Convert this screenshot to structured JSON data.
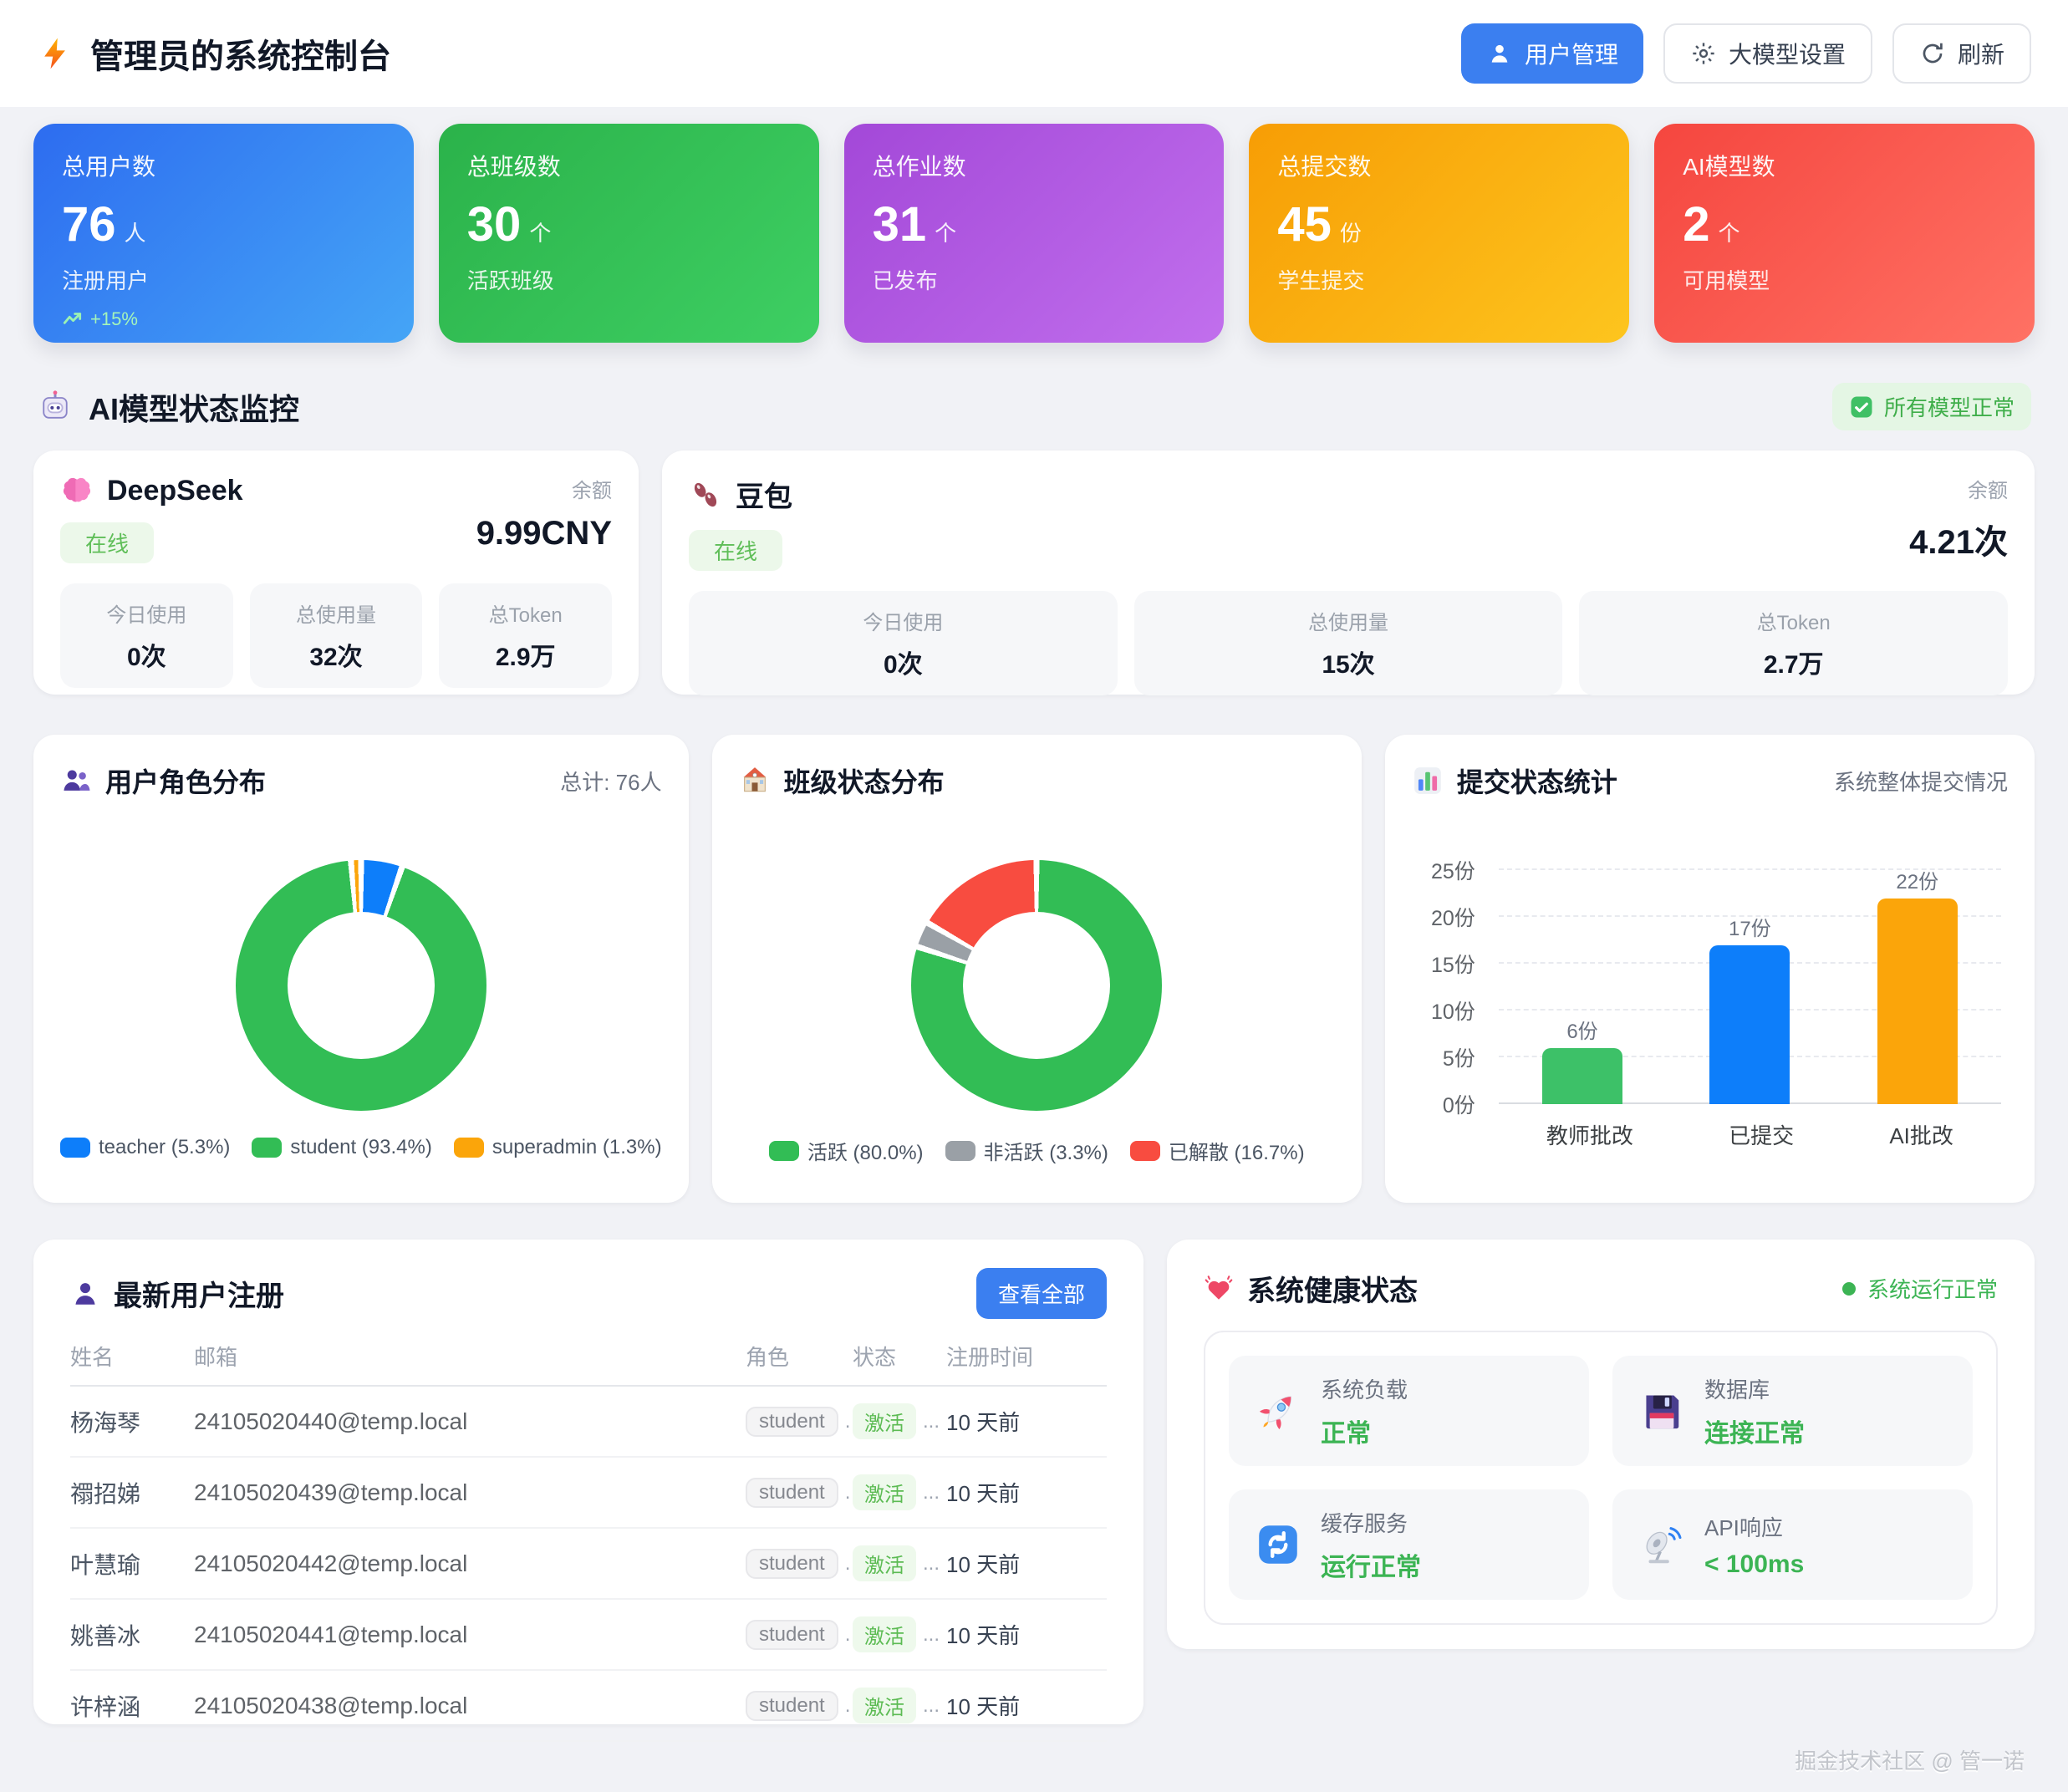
{
  "colors": {
    "accent_blue": "#3b7ff0",
    "chart_blue": "#0d7efa",
    "chart_green": "#32bd55",
    "chart_orange": "#fba50a",
    "chart_gray": "#9aa0a6",
    "chart_red": "#f84c40",
    "status_green": "#3cb454",
    "page_bg": "#f1f2f6"
  },
  "header": {
    "title": "管理员的系统控制台",
    "user_mgmt": "用户管理",
    "model_settings": "大模型设置",
    "refresh": "刷新"
  },
  "stats": [
    {
      "label": "总用户数",
      "value": "76",
      "unit": "人",
      "sub": "注册用户",
      "trend": "+15%"
    },
    {
      "label": "总班级数",
      "value": "30",
      "unit": "个",
      "sub": "活跃班级"
    },
    {
      "label": "总作业数",
      "value": "31",
      "unit": "个",
      "sub": "已发布"
    },
    {
      "label": "总提交数",
      "value": "45",
      "unit": "份",
      "sub": "学生提交"
    },
    {
      "label": "AI模型数",
      "value": "2",
      "unit": "个",
      "sub": "可用模型"
    }
  ],
  "ai_section": {
    "title": "AI模型状态监控",
    "badge": "所有模型正常"
  },
  "models": [
    {
      "name": "DeepSeek",
      "status": "在线",
      "balance_label": "余额",
      "balance": "9.99CNY",
      "stats": [
        {
          "label": "今日使用",
          "value": "0次"
        },
        {
          "label": "总使用量",
          "value": "32次"
        },
        {
          "label": "总Token",
          "value": "2.9万"
        }
      ]
    },
    {
      "name": "豆包",
      "status": "在线",
      "balance_label": "余额",
      "balance": "4.21次",
      "stats": [
        {
          "label": "今日使用",
          "value": "0次"
        },
        {
          "label": "总使用量",
          "value": "15次"
        },
        {
          "label": "总Token",
          "value": "2.7万"
        }
      ]
    }
  ],
  "chart_data": [
    {
      "type": "pie",
      "title": "用户角色分布",
      "total_label": "总计: 76人",
      "labels": [
        "teacher",
        "student",
        "superadmin"
      ],
      "values": [
        5.3,
        93.4,
        1.3
      ],
      "colors": [
        "#0d7efa",
        "#32bd55",
        "#fba50a"
      ],
      "legend": [
        "teacher (5.3%)",
        "student (93.4%)",
        "superadmin (1.3%)"
      ]
    },
    {
      "type": "pie",
      "title": "班级状态分布",
      "labels": [
        "活跃",
        "非活跃",
        "已解散"
      ],
      "values": [
        80.0,
        3.3,
        16.7
      ],
      "colors": [
        "#32bd55",
        "#9aa0a6",
        "#f84c40"
      ],
      "legend": [
        "活跃 (80.0%)",
        "非活跃 (3.3%)",
        "已解散 (16.7%)"
      ]
    },
    {
      "type": "bar",
      "title": "提交状态统计",
      "subtitle": "系统整体提交情况",
      "categories": [
        "教师批改",
        "已提交",
        "AI批改"
      ],
      "values": [
        6,
        17,
        22
      ],
      "value_labels": [
        "6份",
        "17份",
        "22份"
      ],
      "colors": [
        "#3dc168",
        "#0d7efa",
        "#fba50a"
      ],
      "yticks": [
        "0份",
        "5份",
        "10份",
        "15份",
        "20份",
        "25份"
      ],
      "ylim": [
        0,
        25
      ]
    }
  ],
  "table": {
    "title": "最新用户注册",
    "view_all": "查看全部",
    "columns": [
      "姓名",
      "邮箱",
      "角色",
      "状态",
      "注册时间"
    ],
    "dot": ".",
    "ellipsis": "...",
    "rows": [
      {
        "name": "杨海琴",
        "email": "24105020440@temp.local",
        "role": "student",
        "status": "激活",
        "time": "10 天前"
      },
      {
        "name": "禤招娣",
        "email": "24105020439@temp.local",
        "role": "student",
        "status": "激活",
        "time": "10 天前"
      },
      {
        "name": "叶慧瑜",
        "email": "24105020442@temp.local",
        "role": "student",
        "status": "激活",
        "time": "10 天前"
      },
      {
        "name": "姚善冰",
        "email": "24105020441@temp.local",
        "role": "student",
        "status": "激活",
        "time": "10 天前"
      },
      {
        "name": "许梓涵",
        "email": "24105020438@temp.local",
        "role": "student",
        "status": "激活",
        "time": "10 天前"
      }
    ]
  },
  "health": {
    "title": "系统健康状态",
    "status": "系统运行正常",
    "items": [
      {
        "label": "系统负载",
        "value": "正常"
      },
      {
        "label": "数据库",
        "value": "连接正常"
      },
      {
        "label": "缓存服务",
        "value": "运行正常"
      },
      {
        "label": "API响应",
        "value": "< 100ms"
      }
    ]
  },
  "footer": "掘金技术社区 @ 管一诺"
}
